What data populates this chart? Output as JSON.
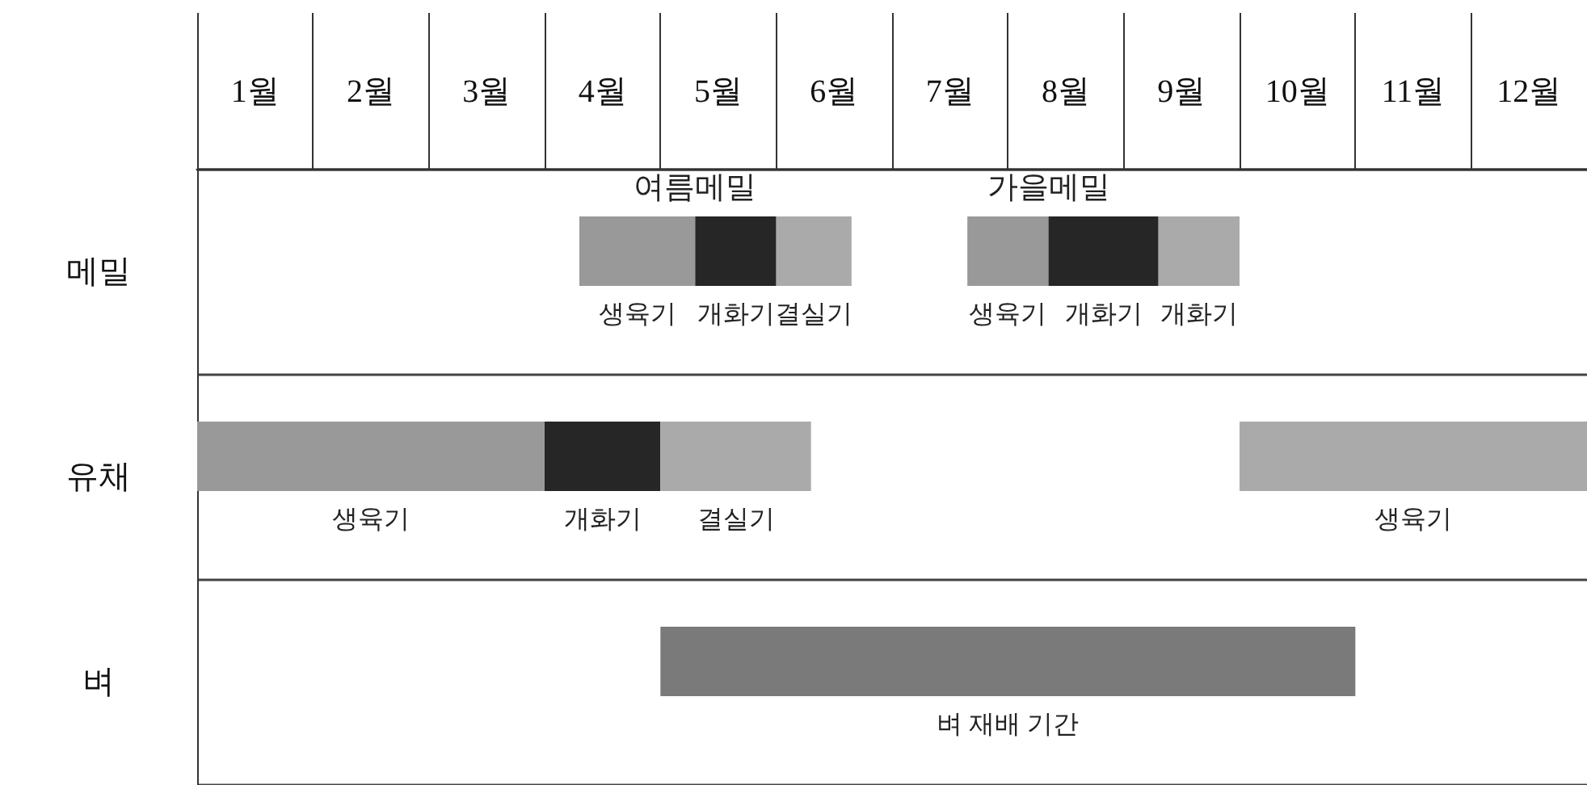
{
  "chart_data": {
    "type": "bar",
    "orientation": "horizontal",
    "categories": [
      "메밀",
      "유채",
      "벼"
    ],
    "xlim": [
      0,
      12
    ],
    "xticks": [
      {
        "value": 0.5,
        "label": "1월"
      },
      {
        "value": 1.5,
        "label": "2월"
      },
      {
        "value": 2.5,
        "label": "3월"
      },
      {
        "value": 3.5,
        "label": "4월"
      },
      {
        "value": 4.5,
        "label": "5월"
      },
      {
        "value": 5.5,
        "label": "6월"
      },
      {
        "value": 6.5,
        "label": "7월"
      },
      {
        "value": 7.5,
        "label": "8월"
      },
      {
        "value": 8.5,
        "label": "9월"
      },
      {
        "value": 9.5,
        "label": "10월"
      },
      {
        "value": 10.5,
        "label": "11월"
      },
      {
        "value": 11.5,
        "label": "12월"
      }
    ],
    "series": [
      {
        "name": "생육기",
        "color": "#999999",
        "base": [
          3.3,
          0,
          null
        ],
        "values": [
          1.0,
          3,
          null
        ]
      },
      {
        "name": "개화기",
        "color": "#262626",
        "base": [
          4.3,
          3,
          null
        ],
        "values": [
          0.7,
          1,
          null
        ]
      },
      {
        "name": "결실기",
        "color": "#aaaaaa",
        "base": [
          5.0,
          4,
          null
        ],
        "values": [
          0.65,
          1.3,
          null
        ]
      },
      {
        "name": "생육기",
        "color": "#999999",
        "base": [
          6.65,
          null,
          null
        ],
        "values": [
          0.7,
          null,
          null
        ]
      },
      {
        "name": "개화기",
        "color": "#262626",
        "base": [
          7.35,
          null,
          null
        ],
        "values": [
          0.95,
          null,
          null
        ]
      },
      {
        "name": "개화기",
        "color": "#aaaaaa",
        "base": [
          8.3,
          null,
          null
        ],
        "values": [
          0.7,
          null,
          null
        ]
      },
      {
        "name": "생육기",
        "color": "#aaaaaa",
        "base": [
          null,
          9,
          null
        ],
        "values": [
          null,
          3,
          null
        ]
      },
      {
        "name": "벼 재배 기간",
        "color": "#7a7a7a",
        "base": [
          null,
          null,
          4
        ],
        "values": [
          null,
          null,
          6
        ]
      }
    ],
    "annotations": [
      {
        "text": "여름메밀",
        "x": 4.3,
        "y": "메밀"
      },
      {
        "text": "가을메밀",
        "x": 7.35,
        "y": "메밀"
      }
    ],
    "grid": "y",
    "legend": false
  }
}
